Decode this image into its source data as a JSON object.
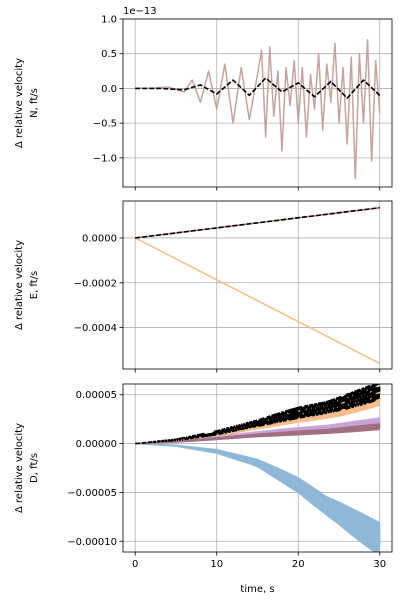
{
  "chart_data": [
    {
      "type": "line",
      "ylabel_lines": [
        "Δ relative velocity",
        "N, ft/s"
      ],
      "offset_text": "1e−13",
      "xlim": [
        -1.5,
        31.5
      ],
      "ylim": [
        -1.42,
        1.0
      ],
      "x_ticks": [
        0,
        10,
        20,
        30
      ],
      "y_ticks": [
        -1.0,
        -0.5,
        0.0,
        0.5,
        1.0
      ],
      "y_tick_labels": [
        "−1.0",
        "−0.5",
        "0.0",
        "0.5",
        "1.0"
      ],
      "grid": true,
      "series": [
        {
          "color": "#c4a49c",
          "style": "solid",
          "x": [
            0,
            2,
            4,
            6,
            7,
            8,
            9,
            10,
            11,
            12,
            13,
            14,
            15,
            15.5,
            16,
            16.5,
            17,
            17.5,
            18,
            18.5,
            19,
            19.5,
            20,
            20.5,
            21,
            21.5,
            22,
            22.5,
            23,
            23.5,
            24,
            24.5,
            25,
            25.5,
            26,
            26.5,
            27,
            27.5,
            28,
            28.5,
            29,
            29.5,
            30
          ],
          "y": [
            0.0,
            0.0,
            0.02,
            -0.05,
            0.12,
            -0.2,
            0.25,
            -0.3,
            0.35,
            -0.5,
            0.3,
            -0.45,
            0.2,
            0.55,
            -0.7,
            0.6,
            -0.4,
            0.25,
            -0.9,
            0.3,
            -0.25,
            0.4,
            -0.5,
            0.3,
            -0.7,
            0.2,
            -0.3,
            0.5,
            -0.6,
            0.35,
            -0.2,
            0.65,
            -0.5,
            0.3,
            -0.8,
            0.45,
            -1.3,
            0.5,
            -0.5,
            0.7,
            -1.05,
            0.4,
            -0.35
          ]
        },
        {
          "color": "#000000",
          "style": "dashed",
          "x": [
            0,
            3,
            6,
            8,
            10,
            12,
            14,
            16,
            18,
            20,
            22,
            24,
            26,
            28,
            30
          ],
          "y": [
            0.0,
            0.0,
            -0.02,
            0.05,
            -0.08,
            0.12,
            -0.1,
            0.15,
            -0.05,
            0.08,
            -0.12,
            0.1,
            -0.14,
            0.12,
            -0.1
          ]
        }
      ]
    },
    {
      "type": "line",
      "ylabel_lines": [
        "Δ relative velocity",
        "E, ft/s"
      ],
      "xlim": [
        -1.5,
        31.5
      ],
      "ylim": [
        -0.000585,
        0.000165
      ],
      "x_ticks": [
        0,
        10,
        20,
        30
      ],
      "y_ticks": [
        0.0,
        -0.0002,
        -0.0004
      ],
      "y_tick_labels": [
        "0.0000",
        "−0.0002",
        "−0.0004"
      ],
      "grid": true,
      "series": [
        {
          "color": "#f5be8a",
          "style": "solid",
          "x": [
            0,
            30
          ],
          "y": [
            0.0,
            -0.00056
          ]
        },
        {
          "color": "#d9787a",
          "style": "solid",
          "x": [
            0,
            30
          ],
          "y": [
            0.0,
            0.000135
          ]
        },
        {
          "color": "#000000",
          "style": "dashed",
          "x": [
            0,
            30
          ],
          "y": [
            0.0,
            0.000135
          ]
        }
      ]
    },
    {
      "type": "line",
      "ylabel_lines": [
        "Δ relative velocity",
        "D, ft/s"
      ],
      "xlabel": "time, s",
      "xlim": [
        -1.5,
        31.5
      ],
      "ylim": [
        -0.000111,
        6.1e-05
      ],
      "x_ticks": [
        0,
        10,
        20,
        30
      ],
      "x_tick_labels": [
        "0",
        "10",
        "20",
        "30"
      ],
      "y_ticks": [
        5e-05,
        0.0,
        -5e-05,
        -0.0001
      ],
      "y_tick_labels": [
        "0.00005",
        "0.00000",
        "−0.00005",
        "−0.00010"
      ],
      "grid": true,
      "series": [
        {
          "color": "#8fb8d8",
          "style": "solid",
          "oscillating": true,
          "x": [
            0,
            5,
            10,
            15,
            20,
            25,
            30
          ],
          "y": [
            0.0,
            -2e-06,
            -8e-06,
            -2.1e-05,
            -4.2e-05,
            -6.9e-05,
            -0.0001
          ]
        },
        {
          "color": "#f5be8a",
          "style": "solid",
          "oscillating": true,
          "x": [
            0,
            5,
            10,
            15,
            20,
            25,
            30
          ],
          "y": [
            0.0,
            3e-06,
            9e-06,
            1.7e-05,
            2.7e-05,
            3.5e-05,
            4.6e-05
          ]
        },
        {
          "color": "#c6a3d8",
          "style": "solid",
          "oscillating": true,
          "x": [
            0,
            5,
            10,
            15,
            20,
            25,
            30
          ],
          "y": [
            0.0,
            2e-06,
            6e-06,
            1e-05,
            1.4e-05,
            1.8e-05,
            2.2e-05
          ]
        },
        {
          "color": "#a07080",
          "style": "solid",
          "oscillating": true,
          "x": [
            0,
            5,
            10,
            15,
            20,
            25,
            30
          ],
          "y": [
            0.0,
            2e-06,
            5e-06,
            8e-06,
            1.1e-05,
            1.4e-05,
            1.7e-05
          ]
        },
        {
          "color": "#000000",
          "style": "dashed",
          "oscillating": true,
          "x": [
            0,
            5,
            10,
            15,
            20,
            25,
            30
          ],
          "y": [
            0.0,
            4e-06,
            1.1e-05,
            2e-05,
            3.2e-05,
            4.2e-05,
            5.3e-05
          ]
        }
      ]
    }
  ]
}
